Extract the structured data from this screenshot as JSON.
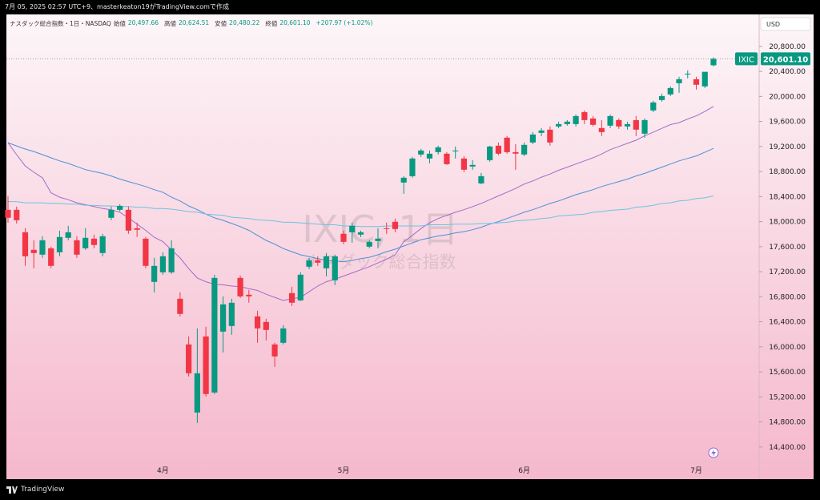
{
  "top_bar": "7月 05, 2025 02:57 UTC+9、masterkeaton19がTradingView.comで作成",
  "chart_data": {
    "type": "candlestick",
    "symbol_title": "ナスダック総合指数・1日・NASDAQ",
    "ohlc_labels": [
      {
        "label": "始値",
        "text": "20,497.66"
      },
      {
        "label": "高値",
        "text": "20,624.51"
      },
      {
        "label": "安値",
        "text": "20,480.22"
      },
      {
        "label": "終値",
        "text": "20,601.10"
      }
    ],
    "change": "+207.97 (+1.02%)",
    "currency": "USD",
    "watermark": [
      "IXIC, 1日",
      "ナスダック総合指数"
    ],
    "price_tag": {
      "symbol": "IXIC",
      "text": "20,601.10"
    },
    "categories": [
      null,
      null,
      null,
      null,
      null,
      null,
      null,
      null,
      null,
      null,
      null,
      null,
      null,
      null,
      null,
      null,
      null,
      null,
      "4月",
      null,
      null,
      null,
      null,
      null,
      null,
      null,
      null,
      null,
      null,
      null,
      null,
      null,
      null,
      null,
      null,
      null,
      null,
      null,
      null,
      "5月",
      null,
      null,
      null,
      null,
      null,
      null,
      null,
      null,
      null,
      null,
      null,
      null,
      null,
      null,
      null,
      null,
      null,
      null,
      null,
      null,
      "6月",
      null,
      null,
      null,
      null,
      null,
      null,
      null,
      null,
      null,
      null,
      null,
      null,
      null,
      null,
      null,
      null,
      null,
      null,
      null,
      "7月",
      null,
      null
    ],
    "open": [
      18188,
      18188,
      17830,
      17549,
      17472,
      17574,
      17510,
      17741,
      17702,
      17574,
      17728,
      17498,
      18061,
      18188,
      18188,
      17894,
      17728,
      17037,
      17190,
      17190,
      16768,
      16038,
      14950,
      16166,
      15270,
      16243,
      16333,
      17101,
      16832,
      16486,
      16397,
      16038,
      16064,
      16858,
      16742,
      17280,
      17382,
      17254,
      17062,
      17805,
      17830,
      17792,
      17600,
      17690,
      17894,
      17997,
      18624,
      18726,
      19072,
      19008,
      19110,
      19085,
      19123,
      19008,
      18880,
      18611,
      18982,
      19213,
      19341,
      19110,
      19072,
      19264,
      19418,
      19469,
      19520,
      19558,
      19558,
      19750,
      19648,
      19494,
      19533,
      19622,
      19520,
      19622,
      19405,
      19776,
      19942,
      20032,
      20211,
      20352,
      20275,
      20160,
      20497.66
    ],
    "high": [
      18406,
      18240,
      17894,
      17702,
      17766,
      17600,
      17856,
      17933,
      17766,
      17894,
      17792,
      17805,
      18240,
      18278,
      18240,
      17984,
      17754,
      17421,
      17510,
      17702,
      16870,
      16166,
      16294,
      16320,
      17152,
      16806,
      16768,
      17139,
      16909,
      16576,
      16448,
      16064,
      16346,
      16960,
      17190,
      17421,
      17446,
      17498,
      17472,
      17856,
      17984,
      17856,
      17702,
      17894,
      17984,
      18048,
      18726,
      19034,
      19162,
      19136,
      19213,
      19110,
      19200,
      19046,
      18982,
      18778,
      19213,
      19264,
      19366,
      19238,
      19264,
      19430,
      19494,
      19520,
      19597,
      19622,
      19712,
      19776,
      19686,
      19622,
      19712,
      19648,
      19597,
      19686,
      19648,
      19930,
      20045,
      20160,
      20314,
      20416,
      20314,
      20390,
      20624.51
    ],
    "low": [
      17984,
      17970,
      17293,
      17254,
      17421,
      17254,
      17446,
      17702,
      17421,
      17549,
      17574,
      17446,
      18022,
      18163,
      17805,
      17754,
      17254,
      16870,
      17152,
      17165,
      16486,
      15526,
      14784,
      15206,
      15245,
      15910,
      16192,
      16781,
      16704,
      16064,
      16102,
      15680,
      16038,
      16653,
      16730,
      17242,
      17293,
      17126,
      16986,
      17638,
      17664,
      17754,
      17574,
      17574,
      17805,
      17830,
      18444,
      18701,
      19034,
      18931,
      19072,
      18906,
      19008,
      18790,
      18829,
      18598,
      18957,
      19059,
      19085,
      18829,
      19046,
      19238,
      19366,
      19213,
      19494,
      19533,
      19520,
      19558,
      19520,
      19366,
      19494,
      19482,
      19469,
      19366,
      19341,
      19750,
      19917,
      20006,
      20058,
      20288,
      20109,
      20134,
      20480.22
    ],
    "close": [
      18061,
      18022,
      17446,
      17498,
      17702,
      17293,
      17754,
      17830,
      17472,
      17741,
      17626,
      17766,
      18188,
      18252,
      17856,
      17869,
      17293,
      17293,
      17446,
      17574,
      16525,
      15577,
      15577,
      15245,
      17101,
      16678,
      16704,
      16806,
      16806,
      16294,
      16269,
      15846,
      16294,
      16704,
      17152,
      17382,
      17344,
      17446,
      17446,
      17677,
      17933,
      17830,
      17677,
      17728,
      17882,
      17882,
      18701,
      19008,
      19136,
      19085,
      19187,
      18918,
      19136,
      18829,
      18906,
      18726,
      19200,
      19085,
      19110,
      19085,
      19226,
      19392,
      19456,
      19264,
      19558,
      19597,
      19686,
      19622,
      19546,
      19430,
      19686,
      19520,
      19558,
      19469,
      19622,
      19904,
      20006,
      20134,
      20275,
      20364,
      20186,
      20393,
      20601.1
    ],
    "up_color": "#089981",
    "down_color": "#f23645",
    "moving_averages": [
      {
        "color": "#a56ac9",
        "values": [
          19260,
          19070,
          18890,
          18790,
          18700,
          18460,
          18390,
          18350,
          18300,
          18270,
          18240,
          18210,
          18190,
          18150,
          18060,
          17960,
          17860,
          17750,
          17680,
          17550,
          17420,
          17250,
          17100,
          17040,
          17000,
          16990,
          16970,
          16960,
          16930,
          16900,
          16840,
          16790,
          16740,
          16770,
          16790,
          16880,
          16970,
          17040,
          17080,
          17130,
          17180,
          17230,
          17280,
          17340,
          17400,
          17470,
          17680,
          17780,
          17890,
          17980,
          18050,
          18100,
          18150,
          18190,
          18240,
          18290,
          18350,
          18410,
          18470,
          18530,
          18600,
          18650,
          18710,
          18760,
          18820,
          18870,
          18920,
          18970,
          19020,
          19080,
          19150,
          19200,
          19250,
          19300,
          19370,
          19430,
          19490,
          19550,
          19580,
          19640,
          19690,
          19760,
          19840
        ]
      },
      {
        "color": "#4a90d9",
        "values": [
          19260,
          19210,
          19160,
          19120,
          19070,
          19020,
          18970,
          18930,
          18880,
          18830,
          18800,
          18770,
          18730,
          18680,
          18640,
          18600,
          18560,
          18510,
          18470,
          18390,
          18330,
          18250,
          18190,
          18120,
          18060,
          18020,
          17970,
          17920,
          17860,
          17780,
          17700,
          17640,
          17570,
          17520,
          17470,
          17440,
          17410,
          17380,
          17370,
          17360,
          17380,
          17410,
          17430,
          17470,
          17520,
          17560,
          17610,
          17660,
          17710,
          17740,
          17770,
          17790,
          17820,
          17840,
          17870,
          17910,
          17960,
          18000,
          18050,
          18100,
          18150,
          18190,
          18240,
          18290,
          18330,
          18380,
          18430,
          18470,
          18510,
          18560,
          18600,
          18640,
          18680,
          18730,
          18770,
          18820,
          18870,
          18920,
          18970,
          19010,
          19050,
          19110,
          19170
        ]
      },
      {
        "color": "#6cc4e0",
        "values": [
          18320,
          18320,
          18300,
          18300,
          18300,
          18290,
          18290,
          18280,
          18280,
          18260,
          18260,
          18250,
          18250,
          18240,
          18240,
          18230,
          18230,
          18210,
          18210,
          18200,
          18180,
          18160,
          18150,
          18120,
          18110,
          18100,
          18070,
          18060,
          18050,
          18030,
          18020,
          18010,
          17990,
          17990,
          17980,
          17970,
          17960,
          17950,
          17950,
          17930,
          17930,
          17920,
          17920,
          17920,
          17930,
          17930,
          17930,
          17930,
          17930,
          17950,
          17950,
          17950,
          17960,
          17960,
          17960,
          17970,
          17970,
          17980,
          17990,
          18010,
          18020,
          18030,
          18050,
          18060,
          18090,
          18100,
          18110,
          18120,
          18150,
          18160,
          18180,
          18190,
          18200,
          18230,
          18240,
          18260,
          18290,
          18300,
          18330,
          18340,
          18370,
          18380,
          18410
        ]
      }
    ],
    "ylim": [
      14180,
      21310
    ],
    "yticks": [
      {
        "value": 14400,
        "label": "14,400.00"
      },
      {
        "value": 14800,
        "label": "14,800.00"
      },
      {
        "value": 15200,
        "label": "15,200.00"
      },
      {
        "value": 15600,
        "label": "15,600.00"
      },
      {
        "value": 16000,
        "label": "16,000.00"
      },
      {
        "value": 16400,
        "label": "16,400.00"
      },
      {
        "value": 16800,
        "label": "16,800.00"
      },
      {
        "value": 17200,
        "label": "17,200.00"
      },
      {
        "value": 17600,
        "label": "17,600.00"
      },
      {
        "value": 18000,
        "label": "18,000.00"
      },
      {
        "value": 18400,
        "label": "18,400.00"
      },
      {
        "value": 18800,
        "label": "18,800.00"
      },
      {
        "value": 19200,
        "label": "19,200.00"
      },
      {
        "value": 19600,
        "label": "19,600.00"
      },
      {
        "value": 20000,
        "label": "20,000.00"
      },
      {
        "value": 20400,
        "label": "20,400.00"
      },
      {
        "value": 20800,
        "label": "20,800.00"
      }
    ]
  },
  "footer": {
    "brand": "TradingView"
  }
}
